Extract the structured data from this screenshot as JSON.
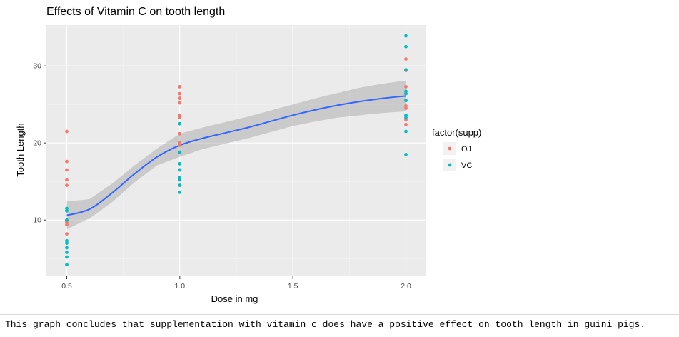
{
  "chart_data": {
    "type": "scatter",
    "title": "Effects of Vitamin C on tooth length",
    "xlabel": "Dose in mg",
    "ylabel": "Tooth Length",
    "xlim": [
      0.41,
      2.09
    ],
    "ylim": [
      2.7,
      35.3
    ],
    "x_ticks": [
      0.5,
      1.0,
      1.5,
      2.0
    ],
    "x_tick_labels": [
      "0.5",
      "1.0",
      "1.5",
      "2.0"
    ],
    "y_ticks": [
      10,
      20,
      30
    ],
    "y_tick_labels": [
      "10",
      "20",
      "30"
    ],
    "grid": true,
    "legend": {
      "title": "factor(supp)",
      "placement": "right",
      "entries": [
        {
          "label": "OJ",
          "color": "#F8766D"
        },
        {
          "label": "VC",
          "color": "#00BFC4"
        }
      ]
    },
    "series": [
      {
        "name": "OJ",
        "color": "#F8766D",
        "points": [
          {
            "x": 0.5,
            "y": 15.2
          },
          {
            "x": 0.5,
            "y": 21.5
          },
          {
            "x": 0.5,
            "y": 17.6
          },
          {
            "x": 0.5,
            "y": 9.7
          },
          {
            "x": 0.5,
            "y": 14.5
          },
          {
            "x": 0.5,
            "y": 10.0
          },
          {
            "x": 0.5,
            "y": 8.2
          },
          {
            "x": 0.5,
            "y": 9.4
          },
          {
            "x": 0.5,
            "y": 16.5
          },
          {
            "x": 0.5,
            "y": 9.7
          },
          {
            "x": 1.0,
            "y": 19.7
          },
          {
            "x": 1.0,
            "y": 23.3
          },
          {
            "x": 1.0,
            "y": 23.6
          },
          {
            "x": 1.0,
            "y": 26.4
          },
          {
            "x": 1.0,
            "y": 20.0
          },
          {
            "x": 1.0,
            "y": 25.2
          },
          {
            "x": 1.0,
            "y": 25.8
          },
          {
            "x": 1.0,
            "y": 21.2
          },
          {
            "x": 1.0,
            "y": 14.5
          },
          {
            "x": 1.0,
            "y": 27.3
          },
          {
            "x": 2.0,
            "y": 25.5
          },
          {
            "x": 2.0,
            "y": 26.4
          },
          {
            "x": 2.0,
            "y": 22.4
          },
          {
            "x": 2.0,
            "y": 24.5
          },
          {
            "x": 2.0,
            "y": 24.8
          },
          {
            "x": 2.0,
            "y": 30.9
          },
          {
            "x": 2.0,
            "y": 26.4
          },
          {
            "x": 2.0,
            "y": 27.3
          },
          {
            "x": 2.0,
            "y": 29.4
          },
          {
            "x": 2.0,
            "y": 23.0
          }
        ]
      },
      {
        "name": "VC",
        "color": "#00BFC4",
        "points": [
          {
            "x": 0.5,
            "y": 4.2
          },
          {
            "x": 0.5,
            "y": 11.5
          },
          {
            "x": 0.5,
            "y": 7.3
          },
          {
            "x": 0.5,
            "y": 5.8
          },
          {
            "x": 0.5,
            "y": 6.4
          },
          {
            "x": 0.5,
            "y": 10.0
          },
          {
            "x": 0.5,
            "y": 11.2
          },
          {
            "x": 0.5,
            "y": 11.2
          },
          {
            "x": 0.5,
            "y": 5.2
          },
          {
            "x": 0.5,
            "y": 7.0
          },
          {
            "x": 1.0,
            "y": 16.5
          },
          {
            "x": 1.0,
            "y": 16.5
          },
          {
            "x": 1.0,
            "y": 15.2
          },
          {
            "x": 1.0,
            "y": 17.3
          },
          {
            "x": 1.0,
            "y": 22.5
          },
          {
            "x": 1.0,
            "y": 17.3
          },
          {
            "x": 1.0,
            "y": 13.6
          },
          {
            "x": 1.0,
            "y": 14.5
          },
          {
            "x": 1.0,
            "y": 18.8
          },
          {
            "x": 1.0,
            "y": 15.5
          },
          {
            "x": 2.0,
            "y": 23.6
          },
          {
            "x": 2.0,
            "y": 18.5
          },
          {
            "x": 2.0,
            "y": 33.9
          },
          {
            "x": 2.0,
            "y": 25.5
          },
          {
            "x": 2.0,
            "y": 26.4
          },
          {
            "x": 2.0,
            "y": 32.5
          },
          {
            "x": 2.0,
            "y": 26.7
          },
          {
            "x": 2.0,
            "y": 21.5
          },
          {
            "x": 2.0,
            "y": 23.3
          },
          {
            "x": 2.0,
            "y": 29.5
          }
        ]
      }
    ],
    "smooth": {
      "method": "loess",
      "color": "#3366FF",
      "ribbon_color": "#999999",
      "points": [
        {
          "x": 0.5,
          "y": 10.6,
          "lo": 8.8,
          "hi": 12.4
        },
        {
          "x": 0.6,
          "y": 11.4,
          "lo": 10.2,
          "hi": 12.7
        },
        {
          "x": 0.7,
          "y": 13.5,
          "lo": 12.3,
          "hi": 14.7
        },
        {
          "x": 0.8,
          "y": 16.0,
          "lo": 14.9,
          "hi": 17.1
        },
        {
          "x": 0.9,
          "y": 18.2,
          "lo": 17.1,
          "hi": 19.3
        },
        {
          "x": 1.0,
          "y": 19.7,
          "lo": 18.2,
          "hi": 21.2
        },
        {
          "x": 1.1,
          "y": 20.6,
          "lo": 19.2,
          "hi": 22.0
        },
        {
          "x": 1.2,
          "y": 21.3,
          "lo": 19.9,
          "hi": 22.7
        },
        {
          "x": 1.3,
          "y": 22.0,
          "lo": 20.6,
          "hi": 23.4
        },
        {
          "x": 1.4,
          "y": 22.8,
          "lo": 21.4,
          "hi": 24.2
        },
        {
          "x": 1.5,
          "y": 23.6,
          "lo": 22.2,
          "hi": 25.0
        },
        {
          "x": 1.6,
          "y": 24.3,
          "lo": 22.8,
          "hi": 25.8
        },
        {
          "x": 1.7,
          "y": 24.9,
          "lo": 23.3,
          "hi": 26.5
        },
        {
          "x": 1.8,
          "y": 25.4,
          "lo": 23.6,
          "hi": 27.2
        },
        {
          "x": 1.9,
          "y": 25.8,
          "lo": 23.9,
          "hi": 27.7
        },
        {
          "x": 2.0,
          "y": 26.1,
          "lo": 24.1,
          "hi": 28.1
        }
      ]
    }
  },
  "caption": "This graph concludes that supplementation with vitamin c does have a positive effect on tooth length in guini pigs."
}
